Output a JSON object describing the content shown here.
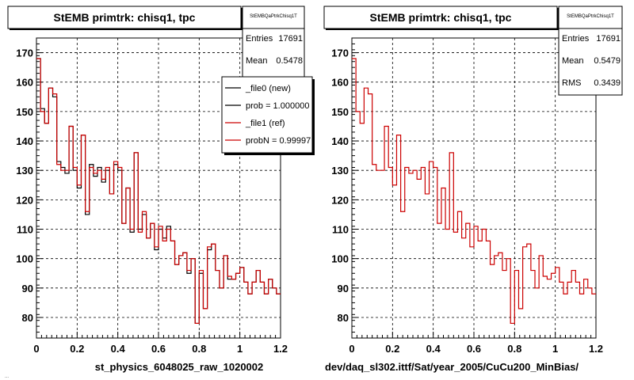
{
  "canvas_footer": "...",
  "chart_data": [
    {
      "type": "histogram-step",
      "title": "StEMB primtrk: chisq1, tpc",
      "stats": {
        "name": "StEMBQaPtrkChisq1T",
        "rows": [
          {
            "label": "Entries",
            "value": "17691"
          },
          {
            "label": "Mean",
            "value": "0.5478"
          }
        ]
      },
      "legend": {
        "placement": "top-right",
        "entries": [
          {
            "label": "_file0 (new)",
            "color": "#000000"
          },
          {
            "label": "prob = 1.000000",
            "color": "#000000"
          },
          {
            "label": "_file1 (ref)",
            "color": "#cc0000"
          },
          {
            "label": "probN = 0.99997",
            "color": "#cc0000"
          }
        ]
      },
      "xlabel": "st_physics_6048025_raw_1020002",
      "xlim": [
        0,
        1.2
      ],
      "ylim": [
        73,
        175
      ],
      "xticks": [
        0,
        0.2,
        0.4,
        0.6,
        0.8,
        1,
        1.2
      ],
      "xtick_labels": [
        "0",
        "0.2",
        "0.4",
        "0.6",
        "0.8",
        "1",
        "1.2"
      ],
      "yticks": [
        80,
        90,
        100,
        110,
        120,
        130,
        140,
        150,
        160,
        170
      ],
      "grid": true,
      "bin_edges": [
        0,
        0.02,
        0.04,
        0.06,
        0.08,
        0.1,
        0.12,
        0.14,
        0.16,
        0.18,
        0.2,
        0.22,
        0.24,
        0.26,
        0.28,
        0.3,
        0.32,
        0.34,
        0.36,
        0.38,
        0.4,
        0.42,
        0.44,
        0.46,
        0.48,
        0.5,
        0.52,
        0.54,
        0.56,
        0.58,
        0.6,
        0.62,
        0.64,
        0.66,
        0.68,
        0.7,
        0.72,
        0.74,
        0.76,
        0.78,
        0.8,
        0.82,
        0.84,
        0.86,
        0.88,
        0.9,
        0.92,
        0.94,
        0.96,
        0.98,
        1,
        1.02,
        1.04,
        1.06,
        1.08,
        1.1,
        1.12,
        1.14,
        1.16,
        1.18,
        1.2
      ],
      "series": [
        {
          "name": "_file0 (new)",
          "color": "#000000",
          "values": [
            168,
            151,
            146,
            158,
            155,
            133,
            131,
            129,
            145,
            130,
            124,
            142,
            115,
            132,
            128,
            131,
            126,
            130,
            122,
            132,
            130,
            112,
            124,
            109,
            136,
            110,
            115,
            107,
            112,
            103,
            110,
            107,
            111,
            106,
            98,
            101,
            102,
            95,
            100,
            78,
            95,
            83,
            103,
            105,
            96,
            90,
            101,
            93,
            93,
            95,
            97,
            92,
            88,
            92,
            96,
            92,
            88,
            93,
            90,
            88
          ]
        },
        {
          "name": "_file1 (ref)",
          "color": "#cc0000",
          "values": [
            168,
            150,
            146,
            158,
            156,
            132,
            130,
            130,
            145,
            131,
            125,
            142,
            116,
            131,
            129,
            130,
            127,
            131,
            122,
            133,
            131,
            112,
            124,
            110,
            136,
            109,
            116,
            107,
            112,
            104,
            111,
            106,
            110,
            106,
            98,
            101,
            102,
            96,
            100,
            78,
            96,
            83,
            104,
            105,
            96,
            90,
            101,
            94,
            93,
            95,
            97,
            92,
            88,
            92,
            96,
            92,
            88,
            93,
            90,
            88
          ]
        }
      ]
    },
    {
      "type": "histogram-step",
      "title": "StEMB primtrk: chisq1, tpc",
      "stats": {
        "name": "StEMBQaPtrkChisq1T",
        "rows": [
          {
            "label": "Entries",
            "value": "17691"
          },
          {
            "label": "Mean",
            "value": "0.5479"
          },
          {
            "label": "RMS",
            "value": "0.3439"
          }
        ]
      },
      "xlabel": "dev/daq_sl302.ittf/Sat/year_2005/CuCu200_MinBias/",
      "xlim": [
        0,
        1.2
      ],
      "ylim": [
        73,
        175
      ],
      "xticks": [
        0,
        0.2,
        0.4,
        0.6,
        0.8,
        1,
        1.2
      ],
      "xtick_labels": [
        "0",
        "0.2",
        "0.4",
        "0.6",
        "0.8",
        "1",
        "1.2"
      ],
      "yticks": [
        80,
        90,
        100,
        110,
        120,
        130,
        140,
        150,
        160,
        170
      ],
      "grid": true,
      "bin_edges": [
        0,
        0.02,
        0.04,
        0.06,
        0.08,
        0.1,
        0.12,
        0.14,
        0.16,
        0.18,
        0.2,
        0.22,
        0.24,
        0.26,
        0.28,
        0.3,
        0.32,
        0.34,
        0.36,
        0.38,
        0.4,
        0.42,
        0.44,
        0.46,
        0.48,
        0.5,
        0.52,
        0.54,
        0.56,
        0.58,
        0.6,
        0.62,
        0.64,
        0.66,
        0.68,
        0.7,
        0.72,
        0.74,
        0.76,
        0.78,
        0.8,
        0.82,
        0.84,
        0.86,
        0.88,
        0.9,
        0.92,
        0.94,
        0.96,
        0.98,
        1,
        1.02,
        1.04,
        1.06,
        1.08,
        1.1,
        1.12,
        1.14,
        1.16,
        1.18,
        1.2
      ],
      "series": [
        {
          "name": "",
          "color": "#cc0000",
          "values": [
            168,
            150,
            146,
            158,
            156,
            132,
            130,
            130,
            145,
            131,
            125,
            142,
            116,
            131,
            129,
            130,
            127,
            131,
            122,
            133,
            131,
            112,
            124,
            110,
            136,
            109,
            116,
            107,
            112,
            104,
            111,
            106,
            110,
            106,
            98,
            101,
            102,
            96,
            100,
            78,
            96,
            83,
            104,
            105,
            96,
            90,
            101,
            94,
            93,
            95,
            97,
            92,
            88,
            92,
            96,
            92,
            88,
            93,
            90,
            88
          ]
        }
      ]
    }
  ]
}
